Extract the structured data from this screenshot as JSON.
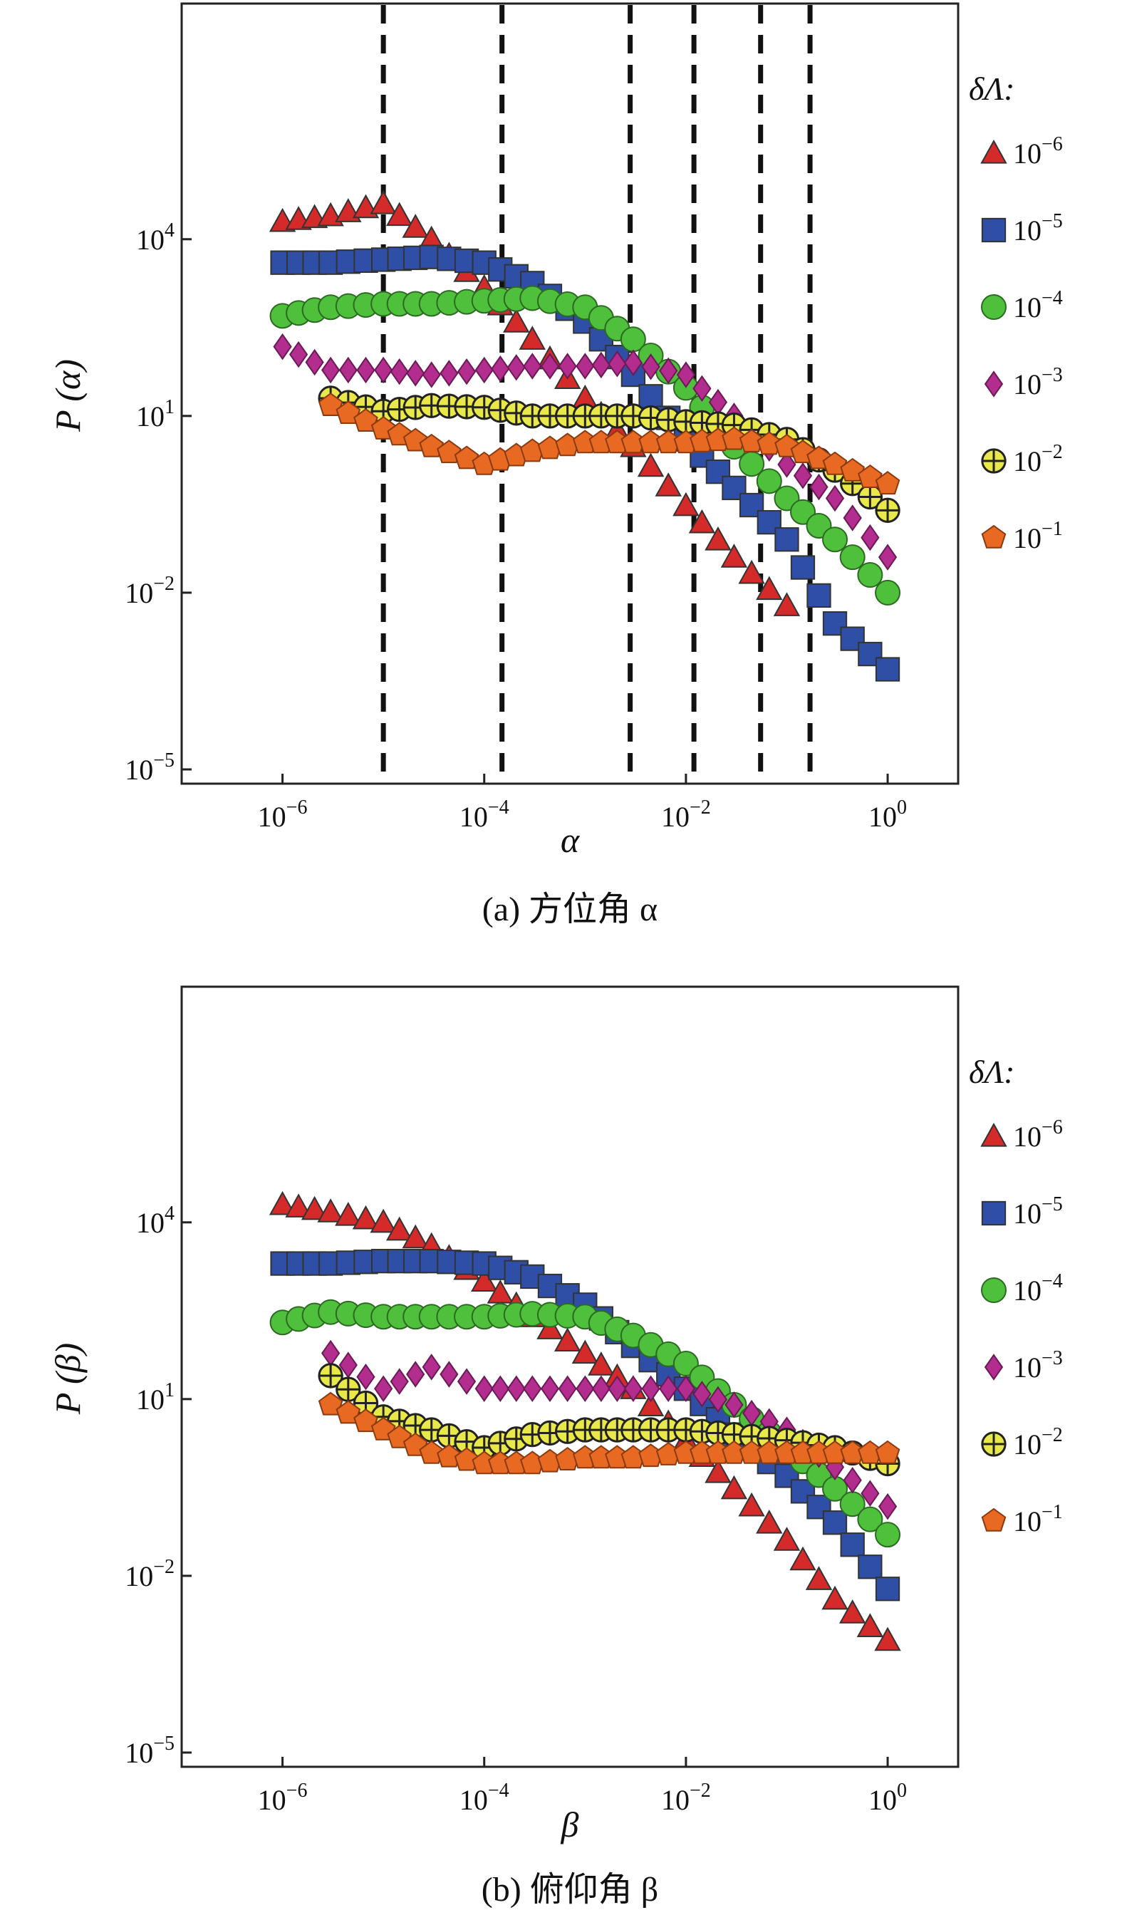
{
  "colors": {
    "1e-6": "#d42a2a",
    "1e-5": "#2f4fa6",
    "1e-4": "#4fc03c",
    "1e-3": "#b22d8e",
    "1e-2": "#e8e84a",
    "1e-1": "#e86a22",
    "dashed_lines": "#111111",
    "frame": "#222222"
  },
  "legend": {
    "title": "δΛ:",
    "items": [
      {
        "key": "1e-6",
        "marker": "triangle",
        "label_base": "10",
        "label_exp": "−6"
      },
      {
        "key": "1e-5",
        "marker": "square",
        "label_base": "10",
        "label_exp": "−5"
      },
      {
        "key": "1e-4",
        "marker": "circle",
        "label_base": "10",
        "label_exp": "−4"
      },
      {
        "key": "1e-3",
        "marker": "diamond",
        "label_base": "10",
        "label_exp": "−3"
      },
      {
        "key": "1e-2",
        "marker": "circle-plus",
        "label_base": "10",
        "label_exp": "−2"
      },
      {
        "key": "1e-1",
        "marker": "pentagon",
        "label_base": "10",
        "label_exp": "−1"
      }
    ]
  },
  "chart_data": [
    {
      "type": "scatter",
      "caption": "(a) 方位角 α",
      "xlabel": "α",
      "ylabel": "P (α)",
      "x_scale": "log",
      "y_scale": "log",
      "xlim": [
        1e-07,
        5
      ],
      "ylim": [
        1e-05,
        100000000.0
      ],
      "x_ticks": [
        {
          "base": "10",
          "exp": "−6",
          "value": 1e-06
        },
        {
          "base": "10",
          "exp": "−4",
          "value": 0.0001
        },
        {
          "base": "10",
          "exp": "−2",
          "value": 0.01
        },
        {
          "base": "10",
          "exp": "0",
          "value": 1
        }
      ],
      "y_ticks": [
        {
          "base": "10",
          "exp": "−5",
          "value": 1e-05
        },
        {
          "base": "10",
          "exp": "−2",
          "value": 0.01
        },
        {
          "base": "10",
          "exp": "1",
          "value": 10
        },
        {
          "base": "10",
          "exp": "4",
          "value": 10000.0
        }
      ],
      "vertical_dashed_lines_x": [
        1e-05,
        0.00015,
        0.0028,
        0.012,
        0.055,
        0.17
      ],
      "grid": false,
      "legend_position": "right",
      "series": [
        {
          "key": "1e-6",
          "x": [
            1e-06,
            3e-06,
            1e-05,
            3e-05,
            0.0001,
            0.0003,
            0.001,
            0.003,
            0.01,
            0.03,
            0.1
          ],
          "y": [
            20000.0,
            25000.0,
            40000.0,
            10000.0,
            1500,
            200,
            20,
            3,
            0.3,
            0.04,
            0.006
          ]
        },
        {
          "key": "1e-5",
          "x": [
            1e-06,
            3e-06,
            1e-05,
            3e-05,
            0.0001,
            0.0003,
            0.001,
            0.003,
            0.01,
            0.03,
            0.1,
            0.3,
            1
          ],
          "y": [
            4000,
            4000,
            4500,
            5000,
            4000,
            1800,
            400,
            50,
            4,
            0.6,
            0.08,
            0.003,
            0.0005
          ]
        },
        {
          "key": "1e-4",
          "x": [
            1e-06,
            3e-06,
            1e-05,
            3e-05,
            0.0001,
            0.0003,
            0.001,
            0.003,
            0.01,
            0.03,
            0.1,
            0.3,
            1
          ],
          "y": [
            500,
            700,
            800,
            800,
            900,
            1000,
            700,
            200,
            30,
            3,
            0.4,
            0.08,
            0.01
          ]
        },
        {
          "key": "1e-3",
          "x": [
            1e-06,
            3e-06,
            1e-05,
            3e-05,
            0.0001,
            0.0003,
            0.001,
            0.003,
            0.01,
            0.03,
            0.1,
            0.3,
            1
          ],
          "y": [
            150,
            60,
            60,
            50,
            60,
            70,
            70,
            80,
            50,
            10,
            1.5,
            0.4,
            0.04
          ]
        },
        {
          "key": "1e-2",
          "x": [
            3e-06,
            1e-05,
            3e-05,
            0.0001,
            0.0003,
            0.001,
            0.003,
            0.01,
            0.03,
            0.1,
            0.3,
            1
          ],
          "y": [
            20,
            12,
            15,
            14,
            10,
            10,
            10,
            8,
            7,
            4,
            1.2,
            0.25
          ]
        },
        {
          "key": "1e-1",
          "x": [
            3e-06,
            1e-05,
            3e-05,
            0.0001,
            0.0003,
            0.001,
            0.003,
            0.01,
            0.03,
            0.1,
            0.3,
            1
          ],
          "y": [
            15,
            6,
            3,
            1.5,
            2.5,
            3.5,
            3.5,
            3.5,
            4,
            3,
            1.5,
            0.7
          ]
        }
      ]
    },
    {
      "type": "scatter",
      "caption": "(b) 俯仰角 β",
      "xlabel": "β",
      "ylabel": "P (β)",
      "x_scale": "log",
      "y_scale": "log",
      "xlim": [
        1e-07,
        5
      ],
      "ylim": [
        1e-05,
        100000000.0
      ],
      "x_ticks": [
        {
          "base": "10",
          "exp": "−6",
          "value": 1e-06
        },
        {
          "base": "10",
          "exp": "−4",
          "value": 0.0001
        },
        {
          "base": "10",
          "exp": "−2",
          "value": 0.01
        },
        {
          "base": "10",
          "exp": "0",
          "value": 1
        }
      ],
      "y_ticks": [
        {
          "base": "10",
          "exp": "−5",
          "value": 1e-05
        },
        {
          "base": "10",
          "exp": "−2",
          "value": 0.01
        },
        {
          "base": "10",
          "exp": "1",
          "value": 10
        },
        {
          "base": "10",
          "exp": "4",
          "value": 10000.0
        }
      ],
      "vertical_dashed_lines_x": [],
      "grid": false,
      "legend_position": "right",
      "series": [
        {
          "key": "1e-6",
          "x": [
            1e-06,
            3e-06,
            1e-05,
            3e-05,
            0.0001,
            0.0003,
            0.001,
            0.003,
            0.01,
            0.03,
            0.1,
            0.3,
            1
          ],
          "y": [
            20000.0,
            15000.0,
            10000.0,
            4000,
            1000,
            250,
            60,
            15,
            2,
            0.3,
            0.04,
            0.004,
            0.0008
          ]
        },
        {
          "key": "1e-5",
          "x": [
            1e-06,
            3e-06,
            1e-05,
            3e-05,
            0.0001,
            0.0003,
            0.001,
            0.003,
            0.01,
            0.03,
            0.1,
            0.3,
            1
          ],
          "y": [
            2000,
            2000,
            2200,
            2200,
            2000,
            1200,
            400,
            80,
            15,
            2.5,
            0.5,
            0.08,
            0.006
          ]
        },
        {
          "key": "1e-4",
          "x": [
            1e-06,
            3e-06,
            1e-05,
            3e-05,
            0.0001,
            0.0003,
            0.001,
            0.003,
            0.01,
            0.03,
            0.1,
            0.3,
            1
          ],
          "y": [
            200,
            300,
            250,
            250,
            250,
            280,
            250,
            120,
            40,
            8,
            1.5,
            0.3,
            0.05
          ]
        },
        {
          "key": "1e-3",
          "x": [
            3e-06,
            1e-05,
            3e-05,
            0.0001,
            0.0003,
            0.001,
            0.003,
            0.01,
            0.03,
            0.1,
            0.3,
            1
          ],
          "y": [
            60,
            15,
            35,
            15,
            15,
            15,
            15,
            15,
            8,
            3,
            0.7,
            0.15
          ]
        },
        {
          "key": "1e-2",
          "x": [
            3e-06,
            1e-05,
            3e-05,
            0.0001,
            0.0003,
            0.001,
            0.003,
            0.01,
            0.03,
            0.1,
            0.3,
            1
          ],
          "y": [
            25,
            5,
            3,
            1.5,
            2.5,
            3,
            3,
            3,
            2.5,
            2,
            1.5,
            0.8
          ]
        },
        {
          "key": "1e-1",
          "x": [
            3e-06,
            1e-05,
            3e-05,
            0.0001,
            0.0003,
            0.001,
            0.003,
            0.01,
            0.03,
            0.1,
            0.3,
            1
          ],
          "y": [
            8,
            3,
            1.2,
            0.8,
            0.8,
            1,
            1,
            1.2,
            1.2,
            1.2,
            1.2,
            1.2
          ]
        }
      ]
    }
  ]
}
